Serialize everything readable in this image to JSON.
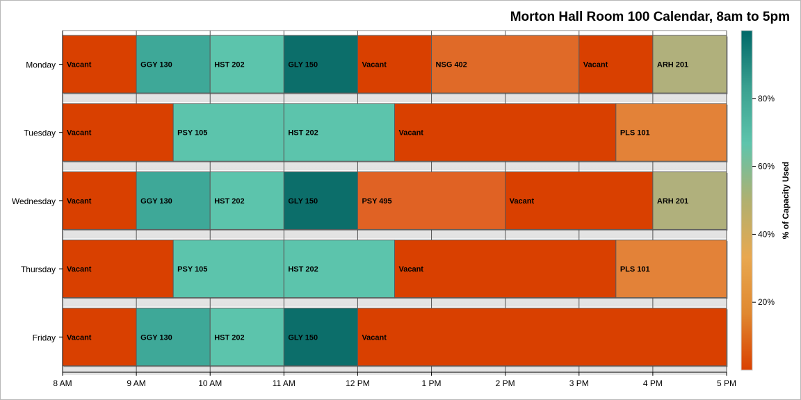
{
  "chart_data": {
    "type": "bar",
    "orientation": "horizontal",
    "title": "Morton Hall Room 100 Calendar, 8am to 5pm",
    "categories": [
      "Monday",
      "Tuesday",
      "Wednesday",
      "Thursday",
      "Friday"
    ],
    "x_ticks": [
      "8 AM",
      "9 AM",
      "10 AM",
      "11 AM",
      "12 PM",
      "1 PM",
      "2 PM",
      "3 PM",
      "4 PM",
      "5 PM"
    ],
    "xlim": [
      8,
      17
    ],
    "grid": true,
    "colorbar": {
      "label": "% of Capacity Used",
      "ticks": [
        "20%",
        "40%",
        "60%",
        "80%"
      ],
      "tick_values": [
        20,
        40,
        60,
        80
      ],
      "range": [
        0,
        100
      ],
      "colors": [
        "#d94000",
        "#e08830",
        "#e8a850",
        "#b0b070",
        "#5ec4ac",
        "#3aa090",
        "#006868"
      ]
    },
    "rows": [
      {
        "day": "Monday",
        "segments": [
          {
            "label": "Vacant",
            "start": 8,
            "end": 9,
            "color": "#d94000"
          },
          {
            "label": "GGY 130",
            "start": 9,
            "end": 10,
            "color": "#3ea898"
          },
          {
            "label": "HST 202",
            "start": 10,
            "end": 11,
            "color": "#5cc4ac"
          },
          {
            "label": "GLY 150",
            "start": 11,
            "end": 12,
            "color": "#0c6e6a"
          },
          {
            "label": "Vacant",
            "start": 12,
            "end": 13,
            "color": "#d94000"
          },
          {
            "label": "NSG 402",
            "start": 13,
            "end": 15,
            "color": "#e06a28"
          },
          {
            "label": "Vacant",
            "start": 15,
            "end": 16,
            "color": "#d94000"
          },
          {
            "label": "ARH 201",
            "start": 16,
            "end": 17,
            "color": "#b0b07c"
          }
        ]
      },
      {
        "day": "Tuesday",
        "segments": [
          {
            "label": "Vacant",
            "start": 8,
            "end": 9.5,
            "color": "#d94000"
          },
          {
            "label": "PSY 105",
            "start": 9.5,
            "end": 11,
            "color": "#5cc4ac"
          },
          {
            "label": "HST 202",
            "start": 11,
            "end": 12.5,
            "color": "#5cc4ac"
          },
          {
            "label": "Vacant",
            "start": 12.5,
            "end": 15.5,
            "color": "#d94000"
          },
          {
            "label": "PLS 101",
            "start": 15.5,
            "end": 17,
            "color": "#e38238"
          }
        ]
      },
      {
        "day": "Wednesday",
        "segments": [
          {
            "label": "Vacant",
            "start": 8,
            "end": 9,
            "color": "#d94000"
          },
          {
            "label": "GGY 130",
            "start": 9,
            "end": 10,
            "color": "#3ea898"
          },
          {
            "label": "HST 202",
            "start": 10,
            "end": 11,
            "color": "#5cc4ac"
          },
          {
            "label": "GLY 150",
            "start": 11,
            "end": 12,
            "color": "#0c6e6a"
          },
          {
            "label": "PSY 495",
            "start": 12,
            "end": 14,
            "color": "#e06224"
          },
          {
            "label": "Vacant",
            "start": 14,
            "end": 16,
            "color": "#d94000"
          },
          {
            "label": "ARH 201",
            "start": 16,
            "end": 17,
            "color": "#b0b07c"
          }
        ]
      },
      {
        "day": "Thursday",
        "segments": [
          {
            "label": "Vacant",
            "start": 8,
            "end": 9.5,
            "color": "#d94000"
          },
          {
            "label": "PSY 105",
            "start": 9.5,
            "end": 11,
            "color": "#5cc4ac"
          },
          {
            "label": "HST 202",
            "start": 11,
            "end": 12.5,
            "color": "#5cc4ac"
          },
          {
            "label": "Vacant",
            "start": 12.5,
            "end": 15.5,
            "color": "#d94000"
          },
          {
            "label": "PLS 101",
            "start": 15.5,
            "end": 17,
            "color": "#e38238"
          }
        ]
      },
      {
        "day": "Friday",
        "segments": [
          {
            "label": "Vacant",
            "start": 8,
            "end": 9,
            "color": "#d94000"
          },
          {
            "label": "GGY 130",
            "start": 9,
            "end": 10,
            "color": "#3ea898"
          },
          {
            "label": "HST 202",
            "start": 10,
            "end": 11,
            "color": "#5cc4ac"
          },
          {
            "label": "GLY 150",
            "start": 11,
            "end": 12,
            "color": "#0c6e6a"
          },
          {
            "label": "Vacant",
            "start": 12,
            "end": 17,
            "color": "#d94000"
          }
        ]
      }
    ]
  }
}
